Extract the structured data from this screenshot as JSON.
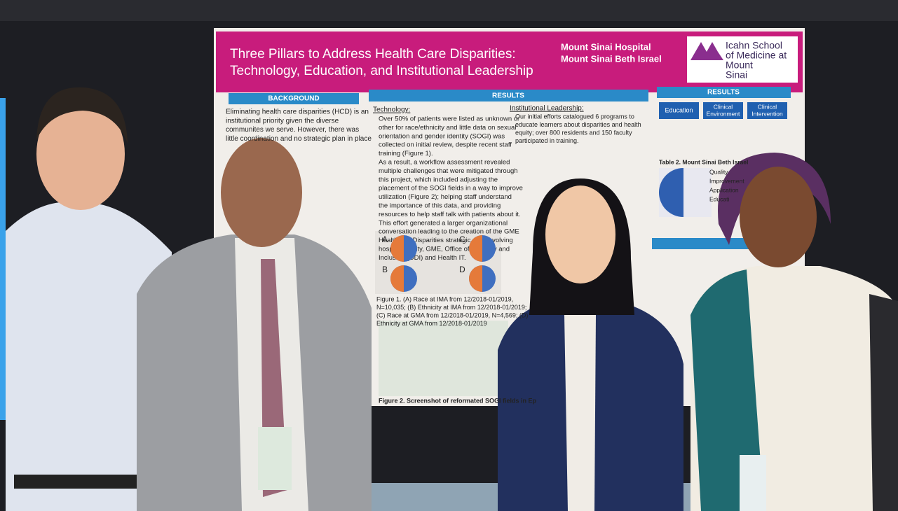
{
  "poster": {
    "title": [
      "Three Pillars to Address Health Care Disparities:",
      "Technology, Education, and Institutional Leadership"
    ],
    "affiliations": [
      "Mount Sinai Hospital",
      "Mount Sinai Beth Israel"
    ],
    "logo": [
      "Icahn School",
      "of Medicine at",
      "Mount",
      "Sinai"
    ],
    "background": {
      "heading": "BACKGROUND",
      "lines": [
        "Eliminating health care disparities (HCD) is an",
        "institutional priority given the diverse",
        "communites we serve. However, there was",
        "little coordination and no strategic plan in place"
      ]
    },
    "results": {
      "heading": "RESULTS",
      "technology": {
        "heading": "Technology:",
        "lines": [
          "Over 50% of patients were listed as unknown or",
          "other for race/ethnicity and little data on sexual",
          "orientation and gender identity (SOGI) was",
          "collected on initial review, despite recent staff",
          "training (Figure 1).",
          "As a result, a workflow assessment revealed",
          "multiple challenges that were mitigated through",
          "this project, which included adjusting the",
          "placement of the SOGI fields in a way to improve",
          "utilization (Figure 2); helping staff understand",
          "the importance of this data, and providing",
          "resources to help staff talk with patients about it.",
          "This effort generated a larger organizational",
          "conversation leading to the creation of the GME",
          "Healthcare Disparities strategic plan involving",
          "hospital quality, GME, Office of Diversity and",
          "Inclusion (ODI) and Health IT."
        ]
      },
      "leadership": {
        "heading": "Institutional Leadership:",
        "lines": [
          "Our initial efforts catalogued 6 programs to",
          "educate learners about disparities and health",
          "equity; over 800 residents and 150 faculty",
          "participated in training."
        ]
      },
      "figure_panels": [
        "A",
        "B",
        "C",
        "D"
      ],
      "figure1_caption": [
        "Figure 1. (A) Race at IMA from 12/2018-01/2019,",
        "N=10,035; (B) Ethnicity at IMA from 12/2018-01/2019;",
        "(C) Race at GMA from 12/2018-01/2019, N=4,569; (D)",
        "Ethnicity at GMA from 12/2018-01/2019"
      ],
      "figure2_caption": "Figure 2. Screenshot of reformated SOGI fields in Ep"
    },
    "results_right": {
      "heading": "RESULTS",
      "pillars": [
        [
          "Education"
        ],
        [
          "Clinical",
          "Environment"
        ],
        [
          "Clinical",
          "Intervention"
        ]
      ],
      "table2_caption": "Table 2. Mount Sinai Beth Israel",
      "chart_labels": [
        "Quality",
        "Improvement",
        "Application",
        "Educati"
      ]
    }
  }
}
